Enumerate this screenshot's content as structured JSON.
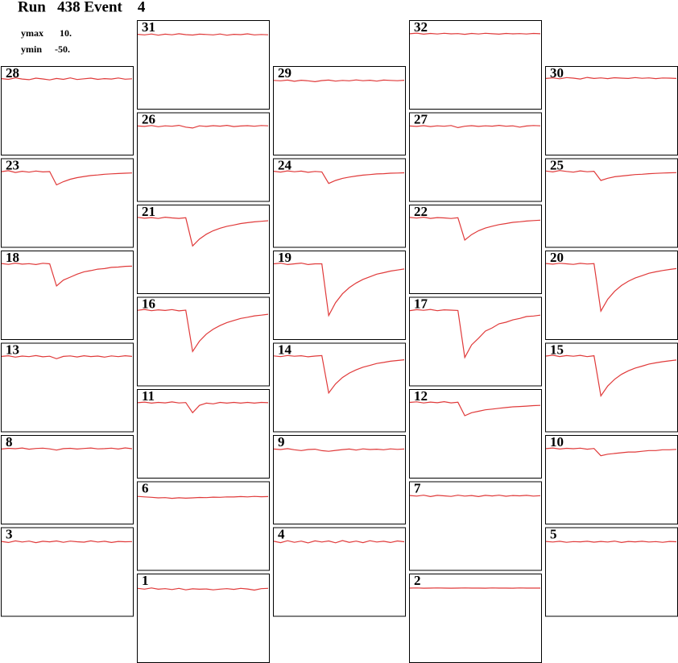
{
  "chart_data": {
    "type": "line",
    "title": "Run   438 Event    4",
    "scale": {
      "ymax_name": "ymax",
      "ymax": {
        "value": 10,
        "label": "10."
      },
      "ymin_name": "ymin",
      "ymin": {
        "value": -50,
        "label": "-50."
      }
    },
    "color": "#e03a3a",
    "panels": [
      {
        "name": "28",
        "values": [
          1.5,
          1,
          2,
          1.2,
          0.8,
          1.8,
          1.3,
          0.6,
          1.6,
          1,
          2,
          0.9,
          1.4,
          1.8,
          1,
          1.5,
          1.2,
          1.9,
          1.1,
          1.4
        ]
      },
      {
        "name": "23",
        "values": [
          1,
          1.6,
          0.4,
          1.2,
          0.6,
          1.4,
          0.8,
          1,
          -8,
          -5.8,
          -4.2,
          -3.1,
          -2.3,
          -1.7,
          -1.3,
          -0.8,
          -0.5,
          -0.3,
          -0.1,
          0.1
        ]
      },
      {
        "name": "18",
        "values": [
          1.2,
          0.6,
          1.5,
          0.8,
          1.1,
          0.5,
          1.4,
          1,
          -14,
          -10,
          -8,
          -6,
          -4.4,
          -3.6,
          -2.6,
          -2.2,
          -1.4,
          -1.2,
          -0.7,
          -0.6
        ]
      },
      {
        "name": "13",
        "values": [
          0.8,
          1.2,
          0.3,
          1,
          0.6,
          1.3,
          0.5,
          0.9,
          -0.8,
          0.8,
          1.1,
          0.4,
          1.2,
          0.7,
          1,
          0.3,
          1.1,
          0.6,
          1.2,
          0.8
        ]
      },
      {
        "name": "8",
        "values": [
          0.5,
          1,
          0.7,
          1.2,
          0.4,
          0.9,
          1.1,
          0.6,
          -0.2,
          0.8,
          1,
          0.5,
          0.9,
          1.2,
          0.6,
          0.8,
          1.1,
          0.5,
          1.3,
          0.7
        ]
      },
      {
        "name": "3",
        "values": [
          0.4,
          -0.3,
          0.8,
          0,
          0.6,
          -0.4,
          0.5,
          0.1,
          0.7,
          -0.2,
          0.6,
          0.2,
          -0.1,
          0.8,
          0,
          0.5,
          -0.3,
          0.4,
          0.2,
          0.3
        ]
      },
      {
        "name": "31",
        "values": [
          0.4,
          0,
          0.6,
          -0.2,
          0.5,
          0.1,
          0.8,
          0.2,
          -0.1,
          0.5,
          0.3,
          0,
          0.6,
          -0.2,
          0.4,
          0.2,
          0.7,
          0,
          0.3,
          0.1
        ]
      },
      {
        "name": "26",
        "values": [
          0.8,
          0.5,
          1.1,
          0.3,
          0.9,
          0.6,
          1.2,
          0,
          -0.6,
          0.9,
          0.5,
          1,
          0.7,
          1.2,
          0.4,
          0.8,
          1,
          0.6,
          1.1,
          0.9
        ]
      },
      {
        "name": "21",
        "values": [
          1.4,
          0.8,
          1.2,
          0.6,
          1.5,
          1,
          0.7,
          1.1,
          -18,
          -13.3,
          -10,
          -7.7,
          -6,
          -4.7,
          -3.8,
          -2.8,
          -2.2,
          -1.7,
          -1.3,
          -0.9
        ]
      },
      {
        "name": "16",
        "values": [
          0.9,
          1.5,
          0.6,
          1.2,
          0.8,
          1.4,
          0.5,
          1,
          -27,
          -20,
          -15.2,
          -11.9,
          -9.4,
          -7.4,
          -6,
          -4.6,
          -3.8,
          -2.9,
          -2.4,
          -1.8
        ]
      },
      {
        "name": "11",
        "values": [
          0.8,
          1.2,
          0.5,
          1,
          0.7,
          1.3,
          0.6,
          0.9,
          -6,
          -1,
          0.5,
          0,
          1,
          0.5,
          1,
          0.5,
          1,
          0.5,
          1,
          0.8
        ]
      },
      {
        "name": "6",
        "values": [
          -0.2,
          -0.5,
          -0.8,
          -1.2,
          -1,
          -1.5,
          -1.1,
          -1.4,
          -1.2,
          -0.9,
          -1,
          -0.7,
          -0.8,
          -0.5,
          -0.6,
          -0.3,
          -0.5,
          -0.2,
          -0.4,
          -0.3
        ]
      },
      {
        "name": "1",
        "values": [
          0,
          -0.5,
          0.3,
          -0.6,
          -0.2,
          -0.8,
          0,
          -1,
          -0.3,
          -0.6,
          -0.4,
          -1,
          -0.5,
          -0.2,
          -0.7,
          0,
          -0.4,
          -1.2,
          -0.2,
          0
        ]
      },
      {
        "name": "29",
        "values": [
          0.3,
          0,
          0.5,
          -0.3,
          0.4,
          0,
          -0.6,
          0.2,
          0.5,
          -0.2,
          0.3,
          0,
          0.6,
          0.1,
          0.4,
          -0.2,
          0.5,
          0.3,
          0.1,
          0.4
        ]
      },
      {
        "name": "24",
        "values": [
          1.2,
          0.7,
          1.5,
          0.9,
          1.3,
          0.5,
          1.1,
          0.8,
          -7,
          -5,
          -3.6,
          -2.7,
          -2,
          -1.4,
          -1,
          -0.6,
          -0.4,
          -0.1,
          0,
          0.2
        ]
      },
      {
        "name": "19",
        "values": [
          1,
          1.5,
          0.5,
          1,
          1.5,
          0.5,
          1,
          1,
          -34,
          -25.3,
          -19.3,
          -15.1,
          -12,
          -9.5,
          -7.8,
          -6,
          -5,
          -3.9,
          -3.2,
          -2.5
        ]
      },
      {
        "name": "14",
        "values": [
          1.1,
          0.6,
          1.4,
          0.9,
          1.2,
          0.5,
          1,
          1.3,
          -24,
          -17.8,
          -13.5,
          -10.5,
          -8.3,
          -6.5,
          -5.3,
          -4,
          -3.3,
          -2.5,
          -2,
          -1.5
        ]
      },
      {
        "name": "9",
        "values": [
          0.5,
          0.2,
          0.8,
          0,
          -0.5,
          0.2,
          0.4,
          -0.6,
          -1,
          -0.4,
          0.1,
          0.5,
          -0.2,
          0.6,
          0.2,
          0.4,
          0,
          0.6,
          0.3,
          0.5
        ]
      },
      {
        "name": "4",
        "values": [
          0.5,
          -0.4,
          0.9,
          -0.2,
          0.6,
          -0.6,
          0.8,
          0,
          0.7,
          -0.5,
          1,
          -0.2,
          0.6,
          -0.4,
          0.9,
          0,
          0.5,
          -0.3,
          0.7,
          0.2
        ]
      },
      {
        "name": "32",
        "values": [
          0.8,
          1.2,
          0.5,
          1,
          0.6,
          1.1,
          0.7,
          0.9,
          0.4,
          1,
          0.6,
          1.1,
          0.8,
          0.5,
          1,
          0.7,
          0.9,
          0.6,
          1,
          0.8
        ]
      },
      {
        "name": "27",
        "values": [
          0.8,
          0.5,
          1,
          0.4,
          0.9,
          0.6,
          1.1,
          -0.3,
          0.6,
          1,
          0.5,
          0.9,
          0.7,
          1.2,
          0.6,
          0.9,
          0,
          0.8,
          1.1,
          0.9
        ]
      },
      {
        "name": "22",
        "values": [
          1.3,
          0.9,
          1.5,
          0.7,
          1.2,
          1,
          0.6,
          1.1,
          -14,
          -10.3,
          -7.7,
          -5.9,
          -4.6,
          -3.5,
          -2.8,
          -2,
          -1.6,
          -1.1,
          -0.8,
          -0.5
        ]
      },
      {
        "name": "17",
        "values": [
          0.7,
          1.3,
          0.9,
          1.5,
          0.6,
          1.2,
          1,
          0.8,
          -31,
          -22.5,
          -18,
          -13.2,
          -11,
          -8.2,
          -7.2,
          -5.6,
          -4.6,
          -3.3,
          -3,
          -2.4
        ]
      },
      {
        "name": "12",
        "values": [
          1,
          1.4,
          0.6,
          1.2,
          0.8,
          1.5,
          0.7,
          1.1,
          -8,
          -6,
          -5,
          -4,
          -3.5,
          -3,
          -2.5,
          -2,
          -1.8,
          -1.5,
          -1.2,
          -1
        ]
      },
      {
        "name": "7",
        "values": [
          0.4,
          0,
          0.6,
          -0.3,
          0.5,
          0.2,
          -0.2,
          0.6,
          0,
          0.4,
          -0.3,
          0.5,
          0.1,
          0.6,
          -0.1,
          0.4,
          0.2,
          0.5,
          0,
          0.3
        ]
      },
      {
        "name": "2",
        "values": [
          0.2,
          0.3,
          0.1,
          0.2,
          0.3,
          0.2,
          0.1,
          0.2,
          0.3,
          0.2,
          0.2,
          0.1,
          0.3,
          0.2,
          0.2,
          0.1,
          0.3,
          0.2,
          0.2,
          0.2
        ]
      },
      {
        "name": "30",
        "values": [
          1.6,
          2,
          1.4,
          2.2,
          1.8,
          1.2,
          2.3,
          1.6,
          2,
          1.5,
          2.1,
          1.8,
          1.6,
          2.2,
          1.7,
          2,
          1.5,
          1.9,
          1.8,
          1.6
        ]
      },
      {
        "name": "25",
        "values": [
          1.4,
          0.8,
          1.7,
          1.1,
          0.6,
          1.5,
          0.9,
          1.2,
          -5,
          -3.5,
          -2.5,
          -2,
          -1.5,
          -1,
          -0.8,
          -0.4,
          -0.2,
          0,
          0.2,
          0.3
        ]
      },
      {
        "name": "20",
        "values": [
          1.2,
          0.8,
          1.4,
          1,
          0.6,
          1.3,
          0.9,
          1.1,
          -31,
          -23,
          -17.6,
          -13.7,
          -10.8,
          -8.6,
          -7,
          -5.4,
          -4.4,
          -3.5,
          -2.8,
          -2.2
        ]
      },
      {
        "name": "15",
        "values": [
          1,
          1.6,
          0.7,
          1.3,
          0.9,
          1.5,
          0.6,
          1.2,
          -26,
          -19.3,
          -14.7,
          -11.4,
          -9,
          -7.1,
          -5.8,
          -4.4,
          -3.6,
          -2.8,
          -2.2,
          -1.7
        ]
      },
      {
        "name": "10",
        "values": [
          0.8,
          1.2,
          0.5,
          1,
          0.7,
          1.1,
          0.4,
          0.9,
          -4,
          -3,
          -2.5,
          -2,
          -1.5,
          -1.5,
          -1,
          -0.5,
          -0.5,
          0,
          0,
          0.3
        ]
      },
      {
        "name": "5",
        "values": [
          0.4,
          0,
          0.5,
          -0.2,
          0.3,
          0.1,
          0.5,
          -0.1,
          0.4,
          0,
          0.6,
          -0.3,
          0.4,
          0.1,
          0.5,
          0,
          0.3,
          -0.2,
          0.4,
          0.2
        ]
      }
    ]
  }
}
